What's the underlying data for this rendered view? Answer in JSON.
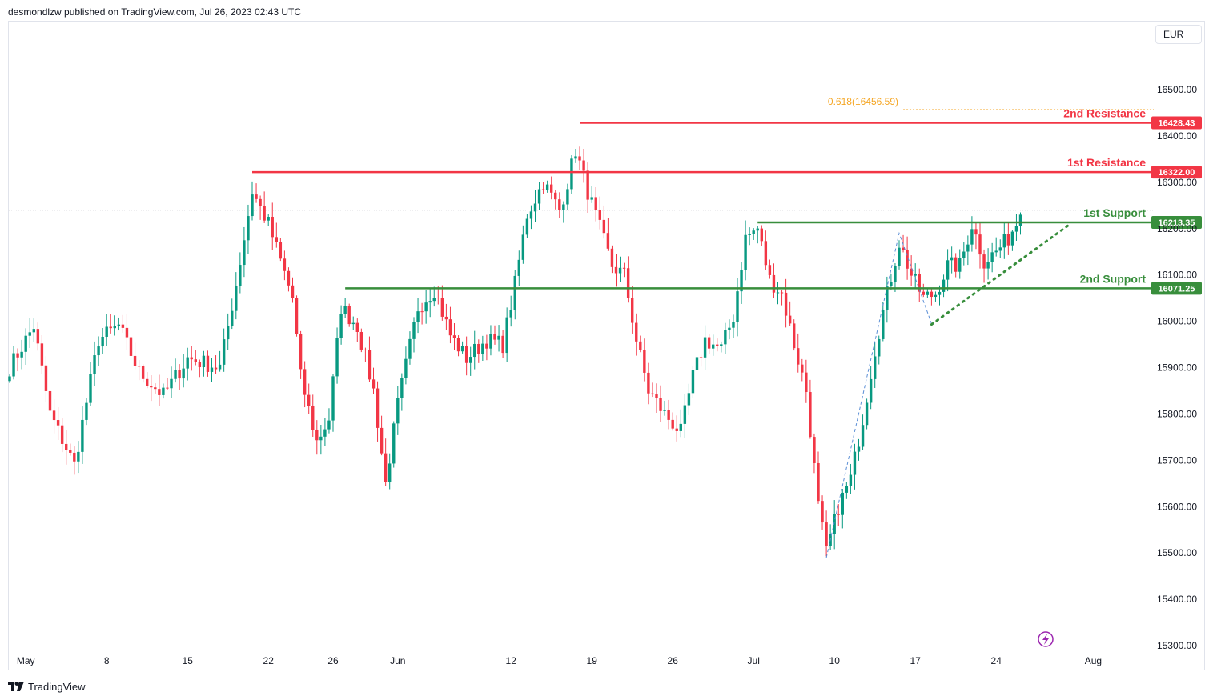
{
  "header": {
    "publisher_line": "desmondlzw published on TradingView.com, Jul 26, 2023 02:43 UTC"
  },
  "toolbar": {
    "currency": "EUR"
  },
  "footer": {
    "brand": "TradingView"
  },
  "colors": {
    "up": "#089981",
    "down": "#f23645",
    "resistance": "#f23645",
    "support": "#388e3c",
    "fib": "#f5a623",
    "trend": "#5b8fd6",
    "axis_text": "#131722",
    "border": "#e0e3eb"
  },
  "chart_data": {
    "type": "candlestick",
    "title": "",
    "xlabel": "",
    "ylabel": "",
    "ylim": [
      15260,
      16560
    ],
    "y_ticks": [
      "15300.00",
      "15400.00",
      "15500.00",
      "15600.00",
      "15700.00",
      "15800.00",
      "15900.00",
      "16000.00",
      "16100.00",
      "16200.00",
      "16300.00",
      "16400.00",
      "16500.00"
    ],
    "x_ticks": [
      {
        "label": "May",
        "index": 4
      },
      {
        "label": "8",
        "index": 24
      },
      {
        "label": "15",
        "index": 44
      },
      {
        "label": "22",
        "index": 64
      },
      {
        "label": "26",
        "index": 80
      },
      {
        "label": "Jun",
        "index": 96
      },
      {
        "label": "12",
        "index": 124
      },
      {
        "label": "19",
        "index": 144
      },
      {
        "label": "26",
        "index": 164
      },
      {
        "label": "Jul",
        "index": 184
      },
      {
        "label": "10",
        "index": 204
      },
      {
        "label": "17",
        "index": 224
      },
      {
        "label": "24",
        "index": 244
      },
      {
        "label": "Aug",
        "index": 268
      }
    ],
    "levels": [
      {
        "name": "2nd Resistance",
        "value": 16428.43,
        "tag": "16428.43",
        "kind": "resistance",
        "start_index": 141
      },
      {
        "name": "1st Resistance",
        "value": 16322.0,
        "tag": "16322.00",
        "kind": "resistance",
        "start_index": 60
      },
      {
        "name": "1st Support",
        "value": 16213.35,
        "tag": "16213.35",
        "kind": "support",
        "start_index": 185
      },
      {
        "name": "2nd Support",
        "value": 16071.25,
        "tag": "16071.25",
        "kind": "support",
        "start_index": 83
      }
    ],
    "fib": {
      "label": "0.618(16456.59)",
      "value": 16456.59,
      "start_index": 221
    },
    "current_price": 16240,
    "trendline": {
      "from": {
        "index": 228,
        "value": 15993
      },
      "to": {
        "index": 262,
        "value": 16208
      }
    },
    "pattern_path": [
      {
        "index": 202,
        "value": 15490
      },
      {
        "index": 220,
        "value": 16190
      },
      {
        "index": 228,
        "value": 15995
      }
    ],
    "anchors": [
      {
        "index": 0,
        "value": 15900
      },
      {
        "index": 6,
        "value": 15990
      },
      {
        "index": 10,
        "value": 15800
      },
      {
        "index": 16,
        "value": 15690
      },
      {
        "index": 22,
        "value": 15960
      },
      {
        "index": 27,
        "value": 15990
      },
      {
        "index": 32,
        "value": 15890
      },
      {
        "index": 38,
        "value": 15840
      },
      {
        "index": 44,
        "value": 15920
      },
      {
        "index": 52,
        "value": 15900
      },
      {
        "index": 56,
        "value": 16080
      },
      {
        "index": 60,
        "value": 16280
      },
      {
        "index": 64,
        "value": 16210
      },
      {
        "index": 70,
        "value": 16050
      },
      {
        "index": 72,
        "value": 15880
      },
      {
        "index": 76,
        "value": 15740
      },
      {
        "index": 79,
        "value": 15790
      },
      {
        "index": 82,
        "value": 16030
      },
      {
        "index": 86,
        "value": 15990
      },
      {
        "index": 90,
        "value": 15850
      },
      {
        "index": 93,
        "value": 15650
      },
      {
        "index": 96,
        "value": 15820
      },
      {
        "index": 101,
        "value": 16030
      },
      {
        "index": 105,
        "value": 16070
      },
      {
        "index": 109,
        "value": 15970
      },
      {
        "index": 113,
        "value": 15920
      },
      {
        "index": 118,
        "value": 15960
      },
      {
        "index": 122,
        "value": 15950
      },
      {
        "index": 125,
        "value": 16080
      },
      {
        "index": 128,
        "value": 16230
      },
      {
        "index": 132,
        "value": 16300
      },
      {
        "index": 136,
        "value": 16240
      },
      {
        "index": 138,
        "value": 16300
      },
      {
        "index": 140,
        "value": 16370
      },
      {
        "index": 143,
        "value": 16280
      },
      {
        "index": 146,
        "value": 16200
      },
      {
        "index": 149,
        "value": 16120
      },
      {
        "index": 152,
        "value": 16100
      },
      {
        "index": 155,
        "value": 15960
      },
      {
        "index": 158,
        "value": 15850
      },
      {
        "index": 162,
        "value": 15800
      },
      {
        "index": 166,
        "value": 15760
      },
      {
        "index": 169,
        "value": 15880
      },
      {
        "index": 172,
        "value": 15960
      },
      {
        "index": 176,
        "value": 15940
      },
      {
        "index": 179,
        "value": 16010
      },
      {
        "index": 182,
        "value": 16180
      },
      {
        "index": 185,
        "value": 16200
      },
      {
        "index": 188,
        "value": 16090
      },
      {
        "index": 191,
        "value": 16060
      },
      {
        "index": 194,
        "value": 15950
      },
      {
        "index": 197,
        "value": 15850
      },
      {
        "index": 200,
        "value": 15600
      },
      {
        "index": 202,
        "value": 15500
      },
      {
        "index": 205,
        "value": 15600
      },
      {
        "index": 208,
        "value": 15660
      },
      {
        "index": 211,
        "value": 15790
      },
      {
        "index": 214,
        "value": 15940
      },
      {
        "index": 217,
        "value": 16060
      },
      {
        "index": 220,
        "value": 16170
      },
      {
        "index": 223,
        "value": 16100
      },
      {
        "index": 226,
        "value": 16050
      },
      {
        "index": 229,
        "value": 16060
      },
      {
        "index": 232,
        "value": 16120
      },
      {
        "index": 235,
        "value": 16120
      },
      {
        "index": 238,
        "value": 16210
      },
      {
        "index": 241,
        "value": 16130
      },
      {
        "index": 244,
        "value": 16150
      },
      {
        "index": 247,
        "value": 16180
      },
      {
        "index": 250,
        "value": 16230
      }
    ]
  }
}
